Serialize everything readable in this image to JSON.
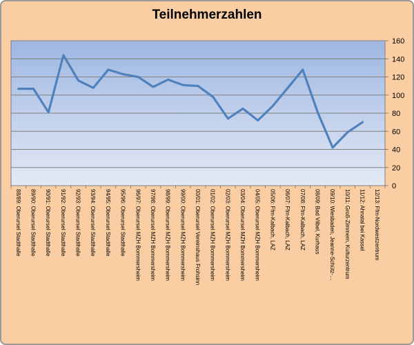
{
  "window": {
    "background_color": "#FACDA2",
    "frame_border_color": "#9A9A9A"
  },
  "chart_data": {
    "type": "line",
    "title": "Teilnehmerzahlen",
    "categories": [
      "88/89: Oberursel Stadthalle",
      "89/90: Oberursel Stadthalle",
      "90/91: Oberursel Stadthalle",
      "91/92: Oberursel Stadthalle",
      "92/93: Oberursel Stadthalle",
      "93/94: Oberursel Stadthalle",
      "94/95: Oberursel Stadthalle",
      "95/96: Oberursel Stadthalle",
      "96/97: Oberursel MZH Bommersheim",
      "97/98: Oberursel MZH Bommersheim",
      "98/99: Oberursel MZH Bommersheim",
      "99/00: Oberursel MZH Bommersheim",
      "00/01: Oberursel Vereinshaus Frohsinn",
      "01/02: Oberursel MZH Bommersheim",
      "02/03: Oberursel MZH Bommersheim",
      "03/04: Oberursel MZH Bommersheim",
      "04/05: Oberursel MZH Bommersheim",
      "05/06: Ffm-Kalbach, LAZ",
      "06/07: Ffm-Kalbach, LAZ",
      "07/08: Ffm-Kalbach, LAZ",
      "08/09: Bad Vilbel, Kurhaus",
      "09/10: Wiesbaden, Jeanne-Schütz-…",
      "10/11: Groß-Zimmern, Kulturzentrum",
      "11/12: Ahnatal bei Kassel",
      "12/13: Ffm-Nordwestzentrum"
    ],
    "series": [
      {
        "values": [
          107,
          107,
          81,
          144,
          116,
          108,
          128,
          123,
          120,
          109,
          117,
          111,
          110,
          98,
          74,
          85,
          72,
          88,
          108,
          128,
          81,
          42,
          59,
          70,
          null
        ]
      }
    ],
    "ylim": [
      0,
      160
    ],
    "yticks": [
      0,
      20,
      40,
      60,
      80,
      100,
      120,
      140,
      160
    ],
    "y_axis_side": "right",
    "x_label_rotation": 90,
    "grid": true,
    "legend": "none",
    "colors": {
      "line": "#4F81BD",
      "plot_gradient_top": "#9DB7E2",
      "plot_gradient_bottom": "#E4E9F5",
      "gridline": "#7F7F7F",
      "axis_text": "#000000",
      "title_text": "#000000",
      "background": "#FACDA2"
    }
  }
}
